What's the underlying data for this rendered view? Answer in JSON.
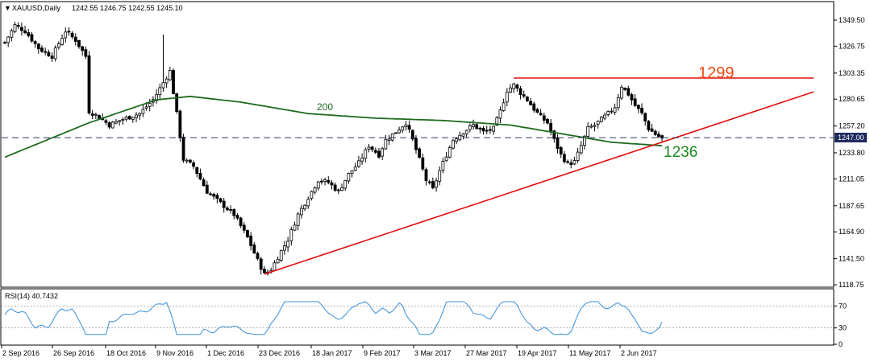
{
  "header": {
    "symbol": "XAUUSD,Daily",
    "ohlc": "1242.55 1246.75 1242.55 1245.10"
  },
  "rsi_header": {
    "label": "RSI(14) 40.7432"
  },
  "annotations": {
    "resistance_label": "1299",
    "ma_label": "200",
    "ma_value_label": "1236",
    "current_price": "1247.00"
  },
  "colors": {
    "candle": "#000000",
    "ma200": "#1e6b1e",
    "trendline": "#e01010",
    "resistance": "#e01010",
    "price_line": "#333a66",
    "rsi": "#3a8fd8",
    "label_1299": "#f04a14",
    "label_1236": "#1e8a1e"
  },
  "chart_data": [
    {
      "type": "candlestick",
      "x_tick_labels": [
        "2 Sep 2016",
        "26 Sep 2016",
        "18 Oct 2016",
        "9 Nov 2016",
        "1 Dec 2016",
        "23 Dec 2016",
        "18 Jan 2017",
        "9 Feb 2017",
        "3 Mar 2017",
        "27 Mar 2017",
        "19 Apr 2017",
        "11 May 2017",
        "2 Jun 2017"
      ],
      "y_tick_labels": [
        "1349.50",
        "1326.75",
        "1303.35",
        "1280.65",
        "1257.20",
        "1233.80",
        "1211.05",
        "1187.65",
        "1164.90",
        "1141.50",
        "1118.75"
      ],
      "ylim": [
        1115,
        1357
      ],
      "current_price": 1247.0,
      "series": [
        {
          "name": "XAUUSD",
          "close_path": [
            [
              0,
              1330
            ],
            [
              3,
              1345
            ],
            [
              6,
              1340
            ],
            [
              10,
              1325
            ],
            [
              14,
              1318
            ],
            [
              18,
              1340
            ],
            [
              21,
              1332
            ],
            [
              24,
              1318
            ],
            [
              25,
              1270
            ],
            [
              28,
              1265
            ],
            [
              31,
              1258
            ],
            [
              34,
              1262
            ],
            [
              37,
              1265
            ],
            [
              40,
              1268
            ],
            [
              44,
              1280
            ],
            [
              47,
              1295
            ],
            [
              49,
              1305
            ],
            [
              51,
              1268
            ],
            [
              53,
              1228
            ],
            [
              56,
              1222
            ],
            [
              60,
              1200
            ],
            [
              64,
              1190
            ],
            [
              68,
              1180
            ],
            [
              72,
              1160
            ],
            [
              75,
              1140
            ],
            [
              77,
              1128
            ],
            [
              79,
              1132
            ],
            [
              81,
              1143
            ],
            [
              84,
              1158
            ],
            [
              87,
              1180
            ],
            [
              90,
              1195
            ],
            [
              93,
              1210
            ],
            [
              96,
              1208
            ],
            [
              99,
              1200
            ],
            [
              102,
              1215
            ],
            [
              105,
              1225
            ],
            [
              108,
              1240
            ],
            [
              111,
              1232
            ],
            [
              113,
              1245
            ],
            [
              116,
              1252
            ],
            [
              119,
              1260
            ],
            [
              121,
              1245
            ],
            [
              123,
              1228
            ],
            [
              125,
              1210
            ],
            [
              127,
              1202
            ],
            [
              129,
              1218
            ],
            [
              131,
              1232
            ],
            [
              133,
              1245
            ],
            [
              136,
              1252
            ],
            [
              139,
              1258
            ],
            [
              142,
              1252
            ],
            [
              145,
              1255
            ],
            [
              147,
              1270
            ],
            [
              149,
              1288
            ],
            [
              151,
              1293
            ],
            [
              153,
              1286
            ],
            [
              155,
              1280
            ],
            [
              157,
              1272
            ],
            [
              159,
              1265
            ],
            [
              161,
              1260
            ],
            [
              163,
              1245
            ],
            [
              165,
              1232
            ],
            [
              167,
              1224
            ],
            [
              169,
              1226
            ],
            [
              171,
              1240
            ],
            [
              173,
              1255
            ],
            [
              175,
              1258
            ],
            [
              177,
              1263
            ],
            [
              179,
              1268
            ],
            [
              181,
              1274
            ],
            [
              183,
              1292
            ],
            [
              185,
              1285
            ],
            [
              187,
              1275
            ],
            [
              189,
              1268
            ],
            [
              191,
              1255
            ],
            [
              193,
              1250
            ],
            [
              195,
              1246
            ]
          ]
        },
        {
          "name": "200",
          "values_path": [
            [
              0,
              1230
            ],
            [
              25,
              1260
            ],
            [
              45,
              1280
            ],
            [
              55,
              1283
            ],
            [
              70,
              1278
            ],
            [
              90,
              1268
            ],
            [
              110,
              1264
            ],
            [
              130,
              1262
            ],
            [
              150,
              1258
            ],
            [
              160,
              1253
            ],
            [
              170,
              1248
            ],
            [
              180,
              1243
            ],
            [
              195,
              1240
            ]
          ]
        }
      ],
      "resistance": {
        "value": 1299,
        "from_x": 151,
        "to_x": 240
      },
      "trendline": {
        "from": [
          77,
          1128
        ],
        "to": [
          240,
          1287
        ]
      }
    },
    {
      "type": "line",
      "name": "RSI(14)",
      "y_tick_labels": [
        "70",
        "30",
        "0"
      ],
      "ylim": [
        0,
        100
      ],
      "levels": [
        70,
        30
      ],
      "last_value": 40.7432
    }
  ]
}
